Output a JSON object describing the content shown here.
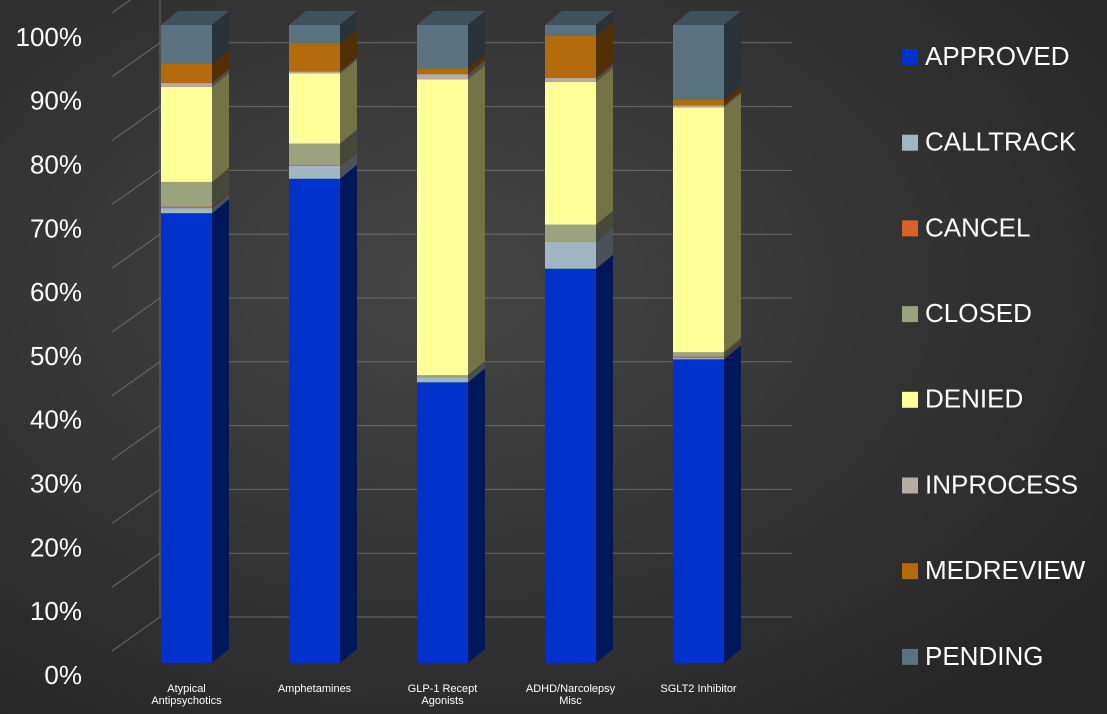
{
  "chart_data": {
    "type": "bar",
    "stacked": true,
    "categories": [
      "Atypical Antipsychotics",
      "Amphetamines",
      "GLP-1 Recept Agonists",
      "ADHD/Narcolepsy Misc",
      "SGLT2 Inhibitor"
    ],
    "series": [
      {
        "name": "APPROVED",
        "color": "#0033cc",
        "values": [
          70.5,
          75.9,
          44.0,
          61.8,
          47.6
        ]
      },
      {
        "name": "CALLTRACK",
        "color": "#9fb6c3",
        "values": [
          0.8,
          2.0,
          0.8,
          4.2,
          0.2
        ]
      },
      {
        "name": "CANCEL",
        "color": "#d9622b",
        "values": [
          0.2,
          0.1,
          0,
          0,
          0.2
        ]
      },
      {
        "name": "CLOSED",
        "color": "#9ba27e",
        "values": [
          3.9,
          3.4,
          0.3,
          2.7,
          0.7
        ]
      },
      {
        "name": "DENIED",
        "color": "#ffff99",
        "values": [
          14.9,
          11.0,
          46.4,
          22.4,
          38.4
        ]
      },
      {
        "name": "INPROCESS",
        "color": "#b8aca0",
        "values": [
          0.6,
          0.3,
          0.8,
          0.6,
          0.3
        ]
      },
      {
        "name": "MEDREVIEW",
        "color": "#b46b0c",
        "values": [
          3.0,
          4.4,
          0.9,
          6.6,
          0.9
        ]
      },
      {
        "name": "PENDING",
        "color": "#5a7380",
        "values": [
          6.1,
          2.9,
          6.8,
          1.7,
          11.7
        ]
      }
    ],
    "ylim": [
      0,
      100
    ],
    "yticks": [
      {
        "value": 0,
        "label": "0%"
      },
      {
        "value": 10,
        "label": "10%"
      },
      {
        "value": 20,
        "label": "20%"
      },
      {
        "value": 30,
        "label": "30%"
      },
      {
        "value": 40,
        "label": "40%"
      },
      {
        "value": 50,
        "label": "50%"
      },
      {
        "value": 60,
        "label": "60%"
      },
      {
        "value": 70,
        "label": "70%"
      },
      {
        "value": 80,
        "label": "80%"
      },
      {
        "value": 90,
        "label": "90%"
      },
      {
        "value": 100,
        "label": "100%"
      }
    ],
    "grid": true,
    "legend": "right"
  }
}
